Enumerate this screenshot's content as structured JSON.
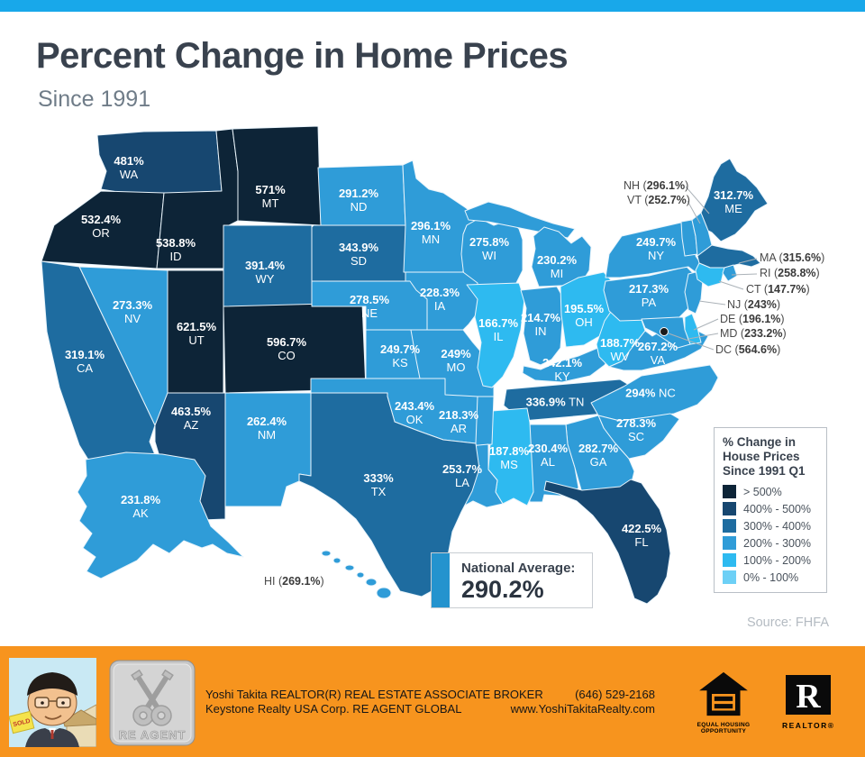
{
  "header": {
    "title": "Percent Change in Home Prices",
    "subtitle": "Since 1991"
  },
  "map": {
    "states": [
      {
        "abbr": "WA",
        "value": "481%",
        "category": "400-500"
      },
      {
        "abbr": "OR",
        "value": "532.4%",
        "category": "gt500"
      },
      {
        "abbr": "ID",
        "value": "538.8%",
        "category": "gt500"
      },
      {
        "abbr": "MT",
        "value": "571%",
        "category": "gt500"
      },
      {
        "abbr": "WY",
        "value": "391.4%",
        "category": "300-400"
      },
      {
        "abbr": "NV",
        "value": "273.3%",
        "category": "200-300"
      },
      {
        "abbr": "UT",
        "value": "621.5%",
        "category": "gt500"
      },
      {
        "abbr": "CO",
        "value": "596.7%",
        "category": "gt500"
      },
      {
        "abbr": "CA",
        "value": "319.1%",
        "category": "300-400"
      },
      {
        "abbr": "AZ",
        "value": "463.5%",
        "category": "400-500"
      },
      {
        "abbr": "NM",
        "value": "262.4%",
        "category": "200-300"
      },
      {
        "abbr": "ND",
        "value": "291.2%",
        "category": "200-300"
      },
      {
        "abbr": "SD",
        "value": "343.9%",
        "category": "300-400"
      },
      {
        "abbr": "NE",
        "value": "278.5%",
        "category": "200-300"
      },
      {
        "abbr": "KS",
        "value": "249.7%",
        "category": "200-300"
      },
      {
        "abbr": "OK",
        "value": "243.4%",
        "category": "200-300"
      },
      {
        "abbr": "TX",
        "value": "333%",
        "category": "300-400"
      },
      {
        "abbr": "MN",
        "value": "296.1%",
        "category": "200-300"
      },
      {
        "abbr": "IA",
        "value": "228.3%",
        "category": "200-300"
      },
      {
        "abbr": "MO",
        "value": "249%",
        "category": "200-300"
      },
      {
        "abbr": "AR",
        "value": "218.3%",
        "category": "200-300"
      },
      {
        "abbr": "LA",
        "value": "253.7%",
        "category": "200-300"
      },
      {
        "abbr": "WI",
        "value": "275.8%",
        "category": "200-300"
      },
      {
        "abbr": "IL",
        "value": "166.7%",
        "category": "100-200"
      },
      {
        "abbr": "MS",
        "value": "187.8%",
        "category": "100-200"
      },
      {
        "abbr": "MI",
        "value": "230.2%",
        "category": "200-300"
      },
      {
        "abbr": "IN",
        "value": "214.7%",
        "category": "200-300"
      },
      {
        "abbr": "OH",
        "value": "195.5%",
        "category": "100-200"
      },
      {
        "abbr": "KY",
        "value": "242.1%",
        "category": "200-300"
      },
      {
        "abbr": "TN",
        "value": "336.9%",
        "category": "300-400"
      },
      {
        "abbr": "AL",
        "value": "230.4%",
        "category": "200-300"
      },
      {
        "abbr": "GA",
        "value": "282.7%",
        "category": "200-300"
      },
      {
        "abbr": "WV",
        "value": "188.7%",
        "category": "100-200"
      },
      {
        "abbr": "VA",
        "value": "267.2%",
        "category": "200-300"
      },
      {
        "abbr": "NC",
        "value": "294%",
        "category": "200-300"
      },
      {
        "abbr": "SC",
        "value": "278.3%",
        "category": "200-300"
      },
      {
        "abbr": "FL",
        "value": "422.5%",
        "category": "400-500"
      },
      {
        "abbr": "PA",
        "value": "217.3%",
        "category": "200-300"
      },
      {
        "abbr": "NY",
        "value": "249.7%",
        "category": "200-300"
      },
      {
        "abbr": "ME",
        "value": "312.7%",
        "category": "300-400"
      },
      {
        "abbr": "AK",
        "value": "231.8%",
        "category": "200-300"
      },
      {
        "abbr": "VT",
        "value": "252.7%",
        "category": "200-300"
      },
      {
        "abbr": "NH",
        "value": "296.1%",
        "category": "200-300"
      },
      {
        "abbr": "MA",
        "value": "315.6%",
        "category": "300-400"
      },
      {
        "abbr": "RI",
        "value": "258.8%",
        "category": "200-300"
      },
      {
        "abbr": "CT",
        "value": "147.7%",
        "category": "100-200"
      },
      {
        "abbr": "NJ",
        "value": "243%",
        "category": "200-300"
      },
      {
        "abbr": "DE",
        "value": "196.1%",
        "category": "100-200"
      },
      {
        "abbr": "MD",
        "value": "233.2%",
        "category": "200-300"
      },
      {
        "abbr": "HI",
        "value": "269.1%",
        "category": "200-300"
      }
    ],
    "callouts": [
      {
        "state": "NH",
        "value": "296.1%"
      },
      {
        "state": "VT",
        "value": "252.7%"
      },
      {
        "state": "MA",
        "value": "315.6%"
      },
      {
        "state": "RI",
        "value": "258.8%"
      },
      {
        "state": "CT",
        "value": "147.7%"
      },
      {
        "state": "NJ",
        "value": "243%"
      },
      {
        "state": "DE",
        "value": "196.1%"
      },
      {
        "state": "MD",
        "value": "233.2%"
      },
      {
        "state": "DC",
        "value": "564.6%"
      },
      {
        "state": "HI",
        "value": "269.1%"
      }
    ]
  },
  "legend": {
    "title": "% Change in House Prices Since 1991 Q1",
    "items": [
      {
        "key": "gt500",
        "label": "> 500%",
        "color": "#0D2437"
      },
      {
        "key": "400-500",
        "label": "400% - 500%",
        "color": "#174770"
      },
      {
        "key": "300-400",
        "label": "300% - 400%",
        "color": "#1E6CA0"
      },
      {
        "key": "200-300",
        "label": "200% - 300%",
        "color": "#2F9CD8"
      },
      {
        "key": "100-200",
        "label": "100% - 200%",
        "color": "#2EBAF0"
      },
      {
        "key": "0-100",
        "label": "0% - 100%",
        "color": "#6DD0F6"
      }
    ]
  },
  "national_average": {
    "label": "National Average:",
    "value": "290.2%"
  },
  "source": "Source: FHFA",
  "footer": {
    "line1": "Yoshi Takita REALTOR(R) REAL ESTATE ASSOCIATE BROKER",
    "line2": "Keystone Realty USA Corp.  RE AGENT GLOBAL",
    "phone": "(646) 529-2168",
    "website": "www.YoshiTakitaRealty.com",
    "badge_text": "RE AGENT",
    "equal_housing_line1": "EQUAL HOUSING",
    "equal_housing_line2": "OPPORTUNITY",
    "realtor_label": "REALTOR®"
  }
}
